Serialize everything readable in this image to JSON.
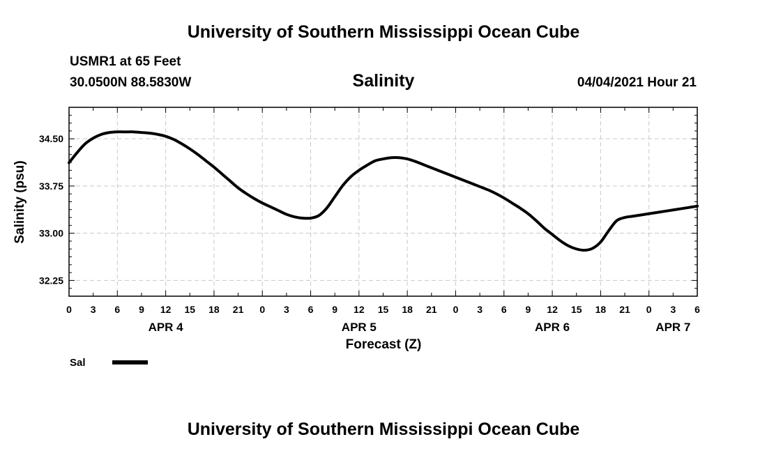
{
  "header": {
    "org_title": "University of Southern Mississippi Ocean Cube",
    "station": "USMR1 at 65 Feet",
    "coords": "30.0500N  88.5830W",
    "datetime": "04/04/2021 Hour 21"
  },
  "footer": {
    "org_title": "University of Southern Mississippi Ocean Cube"
  },
  "colors": {
    "line": "#000000",
    "grid": "#c8c8c8",
    "axis": "#000000"
  },
  "chart_data": {
    "type": "line",
    "title": "Salinity",
    "xlabel": "Forecast (Z)",
    "ylabel": "Salinity (psu)",
    "grid": true,
    "ylim": [
      32.0,
      35.0
    ],
    "xlim": [
      0,
      78
    ],
    "x_unit": "hours since APR 4 00Z",
    "x_ticks": [
      0,
      3,
      6,
      9,
      12,
      15,
      18,
      21,
      24,
      27,
      30,
      33,
      36,
      39,
      42,
      45,
      48,
      51,
      54,
      57,
      60,
      63,
      66,
      69,
      72,
      75,
      78
    ],
    "x_tick_labels": [
      "0",
      "3",
      "6",
      "9",
      "12",
      "15",
      "18",
      "21",
      "0",
      "3",
      "6",
      "9",
      "12",
      "15",
      "18",
      "21",
      "0",
      "3",
      "6",
      "9",
      "12",
      "15",
      "18",
      "21",
      "0",
      "3",
      "6"
    ],
    "x_grid_major": [
      0,
      6,
      12,
      18,
      24,
      30,
      36,
      42,
      48,
      54,
      60,
      66,
      72,
      78
    ],
    "y_ticks": [
      32.25,
      33.0,
      33.75,
      34.5
    ],
    "y_tick_labels": [
      "32.25",
      "33.00",
      "33.75",
      "34.50"
    ],
    "y_minor_ticks": [
      32.0,
      32.125,
      32.375,
      32.5,
      32.625,
      32.75,
      32.875,
      33.125,
      33.25,
      33.375,
      33.5,
      33.625,
      33.875,
      34.0,
      34.125,
      34.25,
      34.375,
      34.625,
      34.75,
      34.875,
      35.0
    ],
    "date_labels": [
      {
        "x": 12,
        "text": "APR 4"
      },
      {
        "x": 36,
        "text": "APR 5"
      },
      {
        "x": 60,
        "text": "APR 6"
      },
      {
        "x": 75,
        "text": "APR 7"
      }
    ],
    "series": [
      {
        "name": "Sal",
        "x": [
          0,
          1,
          2,
          3,
          4,
          5,
          6,
          7,
          8,
          9,
          10,
          11,
          12,
          13,
          14,
          15,
          16,
          17,
          18,
          19,
          20,
          21,
          22,
          23,
          24,
          25,
          26,
          27,
          28,
          29,
          30,
          31,
          32,
          33,
          34,
          35,
          36,
          37,
          38,
          39,
          40,
          41,
          42,
          43,
          44,
          45,
          46,
          47,
          48,
          49,
          50,
          51,
          52,
          53,
          54,
          55,
          56,
          57,
          58,
          59,
          60,
          61,
          62,
          63,
          64,
          65,
          66,
          67,
          68,
          69,
          70,
          71,
          72,
          73,
          74,
          75,
          76,
          77,
          78
        ],
        "values": [
          34.12,
          34.28,
          34.42,
          34.51,
          34.57,
          34.6,
          34.61,
          34.61,
          34.61,
          34.6,
          34.59,
          34.57,
          34.54,
          34.49,
          34.42,
          34.34,
          34.25,
          34.15,
          34.05,
          33.94,
          33.83,
          33.72,
          33.63,
          33.55,
          33.48,
          33.42,
          33.36,
          33.3,
          33.26,
          33.24,
          33.24,
          33.28,
          33.4,
          33.58,
          33.76,
          33.9,
          34.0,
          34.08,
          34.15,
          34.18,
          34.2,
          34.2,
          34.18,
          34.14,
          34.09,
          34.04,
          33.99,
          33.94,
          33.89,
          33.84,
          33.79,
          33.74,
          33.69,
          33.63,
          33.56,
          33.48,
          33.4,
          33.31,
          33.2,
          33.08,
          32.98,
          32.88,
          32.8,
          32.75,
          32.73,
          32.76,
          32.86,
          33.04,
          33.2,
          33.25,
          33.27,
          33.29,
          33.31,
          33.33,
          33.35,
          33.37,
          33.39,
          33.41,
          33.43
        ]
      }
    ]
  },
  "legend": {
    "label": "Sal"
  }
}
